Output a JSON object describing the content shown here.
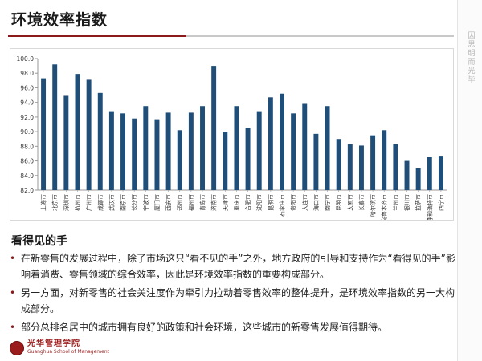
{
  "slide": {
    "title": "环境效率指数",
    "side_label": "因思明 而光毕",
    "section_title": "看得见的手",
    "bullets": [
      "在新零售的发展过程中，除了市场这只“看不见的手”之外，地方政府的引导和支持作为“看得见的手”影响着消费、零售领域的综合效率，因此是环境效率指数的重要构成部分。",
      "另一方面，对新零售的社会关注度作为牵引力拉动着零售效率的整体提升，是环境效率指数的另一大构成部分。",
      "部分总排名居中的城市拥有良好的政策和社会环境，这些城市的新零售发展值得期待。"
    ],
    "bullet_marker": "•",
    "logo": {
      "text": "光华管理学院",
      "sub": "Guanghua School of Management"
    }
  },
  "colors": {
    "bar": "#1f4e79",
    "accent": "#8b1a1a"
  },
  "chart_data": {
    "type": "bar",
    "title": "",
    "xlabel": "",
    "ylabel": "",
    "ylim": [
      82.0,
      100.0
    ],
    "yticks": [
      "82.0",
      "84.0",
      "86.0",
      "88.0",
      "90.0",
      "92.0",
      "94.0",
      "96.0",
      "98.0",
      "100.0"
    ],
    "grid": false,
    "categories": [
      "上海市",
      "北京市",
      "深圳市",
      "杭州市",
      "广州市",
      "成都市",
      "武汉市",
      "南京市",
      "长沙市",
      "宁波市",
      "厦门市",
      "西安市",
      "郑州市",
      "福州市",
      "青岛市",
      "济南市",
      "天津市",
      "重庆市",
      "合肥市",
      "沈阳市",
      "昆明市",
      "石家庄市",
      "贵阳市",
      "大连市",
      "海口市",
      "南宁市",
      "昆明市",
      "太原市",
      "长春市",
      "哈尔滨市",
      "乌鲁木齐市",
      "兰州市",
      "银川市",
      "拉萨市",
      "呼和浩特市",
      "西宁市"
    ],
    "values": [
      97.3,
      99.2,
      94.9,
      97.9,
      97.1,
      95.3,
      92.8,
      92.5,
      91.8,
      93.5,
      91.7,
      92.6,
      90.2,
      92.6,
      93.5,
      99.0,
      89.9,
      93.5,
      90.5,
      92.8,
      94.7,
      95.2,
      92.5,
      93.8,
      89.7,
      93.5,
      89.0,
      88.3,
      88.1,
      89.5,
      90.2,
      88.3,
      86.0,
      85.0,
      86.5,
      86.6
    ]
  }
}
